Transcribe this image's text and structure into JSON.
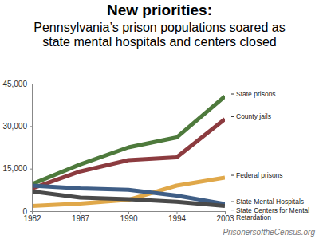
{
  "chart_data": {
    "type": "line",
    "title": "New priorities:",
    "subtitle": "Pennsylvania’s prison populations soared as state mental hospitals and centers closed",
    "source": "PrisonersoftheCensus.org",
    "categories": [
      "1982",
      "1987",
      "1990",
      "1994",
      "2003"
    ],
    "series": [
      {
        "name": "State prisons",
        "color": "#4e7a3c",
        "values": [
          9500,
          16500,
          22500,
          26000,
          40500
        ]
      },
      {
        "name": "County jails",
        "color": "#8c3b3f",
        "values": [
          8000,
          14000,
          18000,
          19000,
          32500
        ]
      },
      {
        "name": "Federal prisons",
        "color": "#e0a84a",
        "values": [
          1800,
          2700,
          4000,
          9000,
          11800
        ]
      },
      {
        "name": "State Mental Hospitals",
        "color": "#3f5e86",
        "values": [
          9000,
          8000,
          7500,
          5500,
          2500
        ]
      },
      {
        "name": "State Centers for Mental Retardation",
        "color": "#4a4a4a",
        "values": [
          7000,
          4800,
          4200,
          3300,
          1800
        ]
      }
    ],
    "ylim": [
      0,
      45000
    ],
    "yticks": [
      0,
      {
        "value": 15000,
        "label": "15,000"
      },
      {
        "value": 30000,
        "label": "30,000"
      },
      {
        "value": 45000,
        "label": "45,000"
      }
    ],
    "grid": false,
    "legend": "right"
  }
}
